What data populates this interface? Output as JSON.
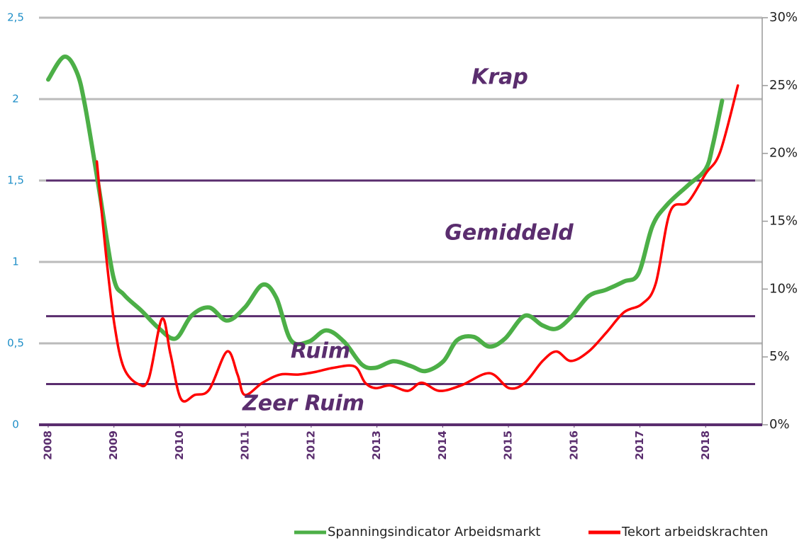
{
  "chart_data": {
    "type": "line",
    "xlim": [
      2007.86,
      2018.86
    ],
    "xticks": [
      2008,
      2009,
      2010,
      2011,
      2012,
      2013,
      2014,
      2015,
      2016,
      2017,
      2018
    ],
    "ylim": [
      0,
      2.5
    ],
    "yticks": [
      0,
      {
        "value": 0.5,
        "label": "0,5"
      },
      1,
      {
        "value": 1.5,
        "label": "1,5"
      },
      2,
      {
        "value": 2.5,
        "label": "2,5"
      }
    ],
    "y2lim": [
      0,
      30
    ],
    "y2ticks": [
      {
        "value": 0,
        "label": "0%"
      },
      {
        "value": 5,
        "label": "5%"
      },
      {
        "value": 10,
        "label": "10%"
      },
      {
        "value": 15,
        "label": "15%"
      },
      {
        "value": 20,
        "label": "20%"
      },
      {
        "value": 25,
        "label": "25%"
      },
      {
        "value": 30,
        "label": "30%"
      }
    ],
    "grid": true,
    "reference_lines": {
      "axis": "y2",
      "values": [
        18,
        8,
        3
      ],
      "color": "#5a2d6e"
    },
    "annotations": [
      "Krap",
      "Gemiddeld",
      "Ruim",
      "Zeer Ruim"
    ],
    "legend": "bottom",
    "series": [
      {
        "name": "Spanningsindicator Arbeidsmarkt",
        "color": "#4caf47",
        "axis": "y",
        "x": [
          2008.0,
          2008.24,
          2008.43,
          2008.56,
          2008.78,
          2008.99,
          2009.15,
          2009.42,
          2009.69,
          2009.94,
          2010.18,
          2010.45,
          2010.72,
          2010.99,
          2011.26,
          2011.47,
          2011.69,
          2011.96,
          2012.23,
          2012.5,
          2012.77,
          2012.98,
          2013.25,
          2013.52,
          2013.74,
          2014.01,
          2014.22,
          2014.47,
          2014.71,
          2014.95,
          2015.25,
          2015.52,
          2015.73,
          2015.95,
          2016.22,
          2016.49,
          2016.76,
          2016.98,
          2017.19,
          2017.41,
          2017.73,
          2018.0,
          2018.11,
          2018.25
        ],
        "values": [
          2.12,
          2.26,
          2.17,
          1.96,
          1.43,
          0.91,
          0.8,
          0.7,
          0.59,
          0.53,
          0.67,
          0.72,
          0.64,
          0.72,
          0.86,
          0.78,
          0.52,
          0.51,
          0.58,
          0.51,
          0.37,
          0.35,
          0.39,
          0.36,
          0.33,
          0.39,
          0.52,
          0.54,
          0.48,
          0.53,
          0.67,
          0.61,
          0.59,
          0.66,
          0.79,
          0.83,
          0.88,
          0.93,
          1.22,
          1.35,
          1.47,
          1.57,
          1.72,
          1.99
        ]
      },
      {
        "name": "Tekort arbeidskrachten",
        "color": "#ff0000",
        "axis": "y2",
        "x": [
          2008.74,
          2008.88,
          2009.01,
          2009.15,
          2009.37,
          2009.53,
          2009.73,
          2009.86,
          2010.02,
          2010.23,
          2010.45,
          2010.72,
          2010.88,
          2010.99,
          2011.26,
          2011.53,
          2011.8,
          2012.07,
          2012.34,
          2012.66,
          2012.82,
          2012.98,
          2013.2,
          2013.47,
          2013.68,
          2013.95,
          2014.28,
          2014.71,
          2015.01,
          2015.25,
          2015.52,
          2015.73,
          2015.95,
          2016.22,
          2016.49,
          2016.76,
          2017.03,
          2017.24,
          2017.46,
          2017.73,
          2018.0,
          2018.22,
          2018.49
        ],
        "values": [
          19.4,
          12.5,
          7.3,
          4.2,
          3.0,
          3.4,
          7.8,
          5.2,
          1.9,
          2.2,
          2.6,
          5.4,
          3.7,
          2.2,
          3.1,
          3.7,
          3.7,
          3.9,
          4.2,
          4.3,
          3.1,
          2.7,
          2.9,
          2.5,
          3.1,
          2.5,
          2.9,
          3.8,
          2.7,
          3.1,
          4.7,
          5.4,
          4.7,
          5.4,
          6.8,
          8.3,
          8.9,
          10.4,
          15.7,
          16.4,
          18.5,
          20.1,
          25.0
        ]
      }
    ]
  }
}
